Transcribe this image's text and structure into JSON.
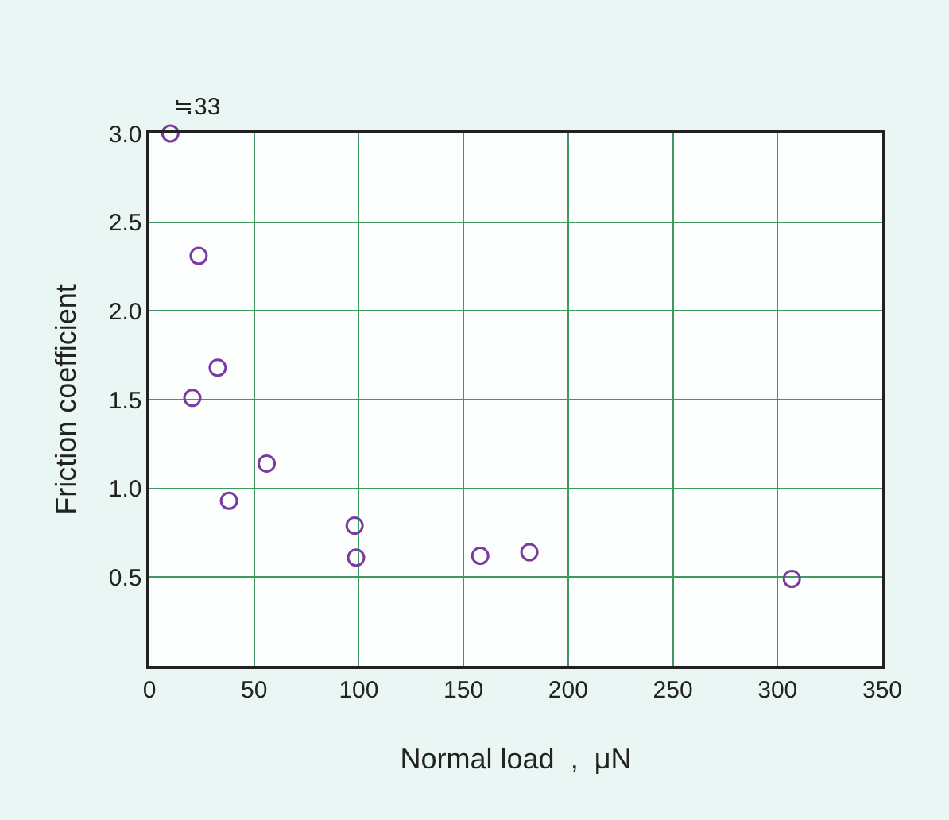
{
  "chart_data": {
    "type": "scatter",
    "xlabel": "Normal load  ,  μN",
    "ylabel": "Friction coefficient",
    "x": [
      10,
      20.5,
      23.5,
      32.6,
      38,
      56,
      98,
      98.7,
      158,
      181.5,
      306.8
    ],
    "series": [
      {
        "color": "#7a3aa0",
        "values": [
          3.0,
          1.51,
          2.31,
          1.68,
          0.93,
          1.14,
          0.79,
          0.61,
          0.62,
          0.64,
          0.49
        ]
      }
    ],
    "xlim": [
      0,
      350
    ],
    "xticks": [
      0,
      50,
      100,
      150,
      200,
      250,
      300,
      350
    ],
    "ylim": [
      0,
      3
    ],
    "yticks": [
      0.5,
      {
        "value": 1,
        "label": "1.0"
      },
      1.5,
      {
        "value": 2,
        "label": "2.0"
      },
      2.5,
      {
        "value": 3,
        "label": "3.0"
      }
    ],
    "grid": true,
    "marker": "circle",
    "annotations": [
      {
        "text": "≒33",
        "x": 10,
        "y": 3
      }
    ]
  }
}
